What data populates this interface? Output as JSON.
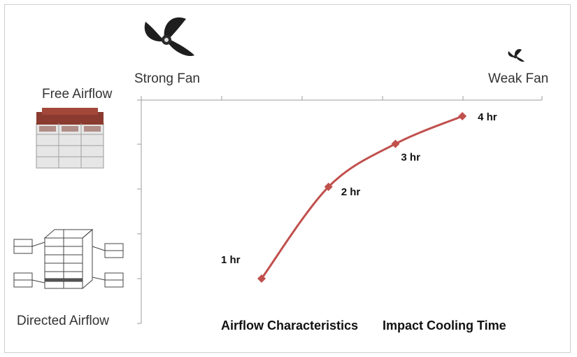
{
  "fans": {
    "strong_label": "Strong Fan",
    "weak_label": "Weak Fan"
  },
  "y_labels": {
    "top": "Free Airflow",
    "bottom": "Directed Airflow"
  },
  "captions": {
    "left": "Airflow Characteristics",
    "right": "Impact Cooling Time"
  },
  "chart_data": {
    "type": "line",
    "x": [
      1,
      2,
      3,
      4
    ],
    "y": [
      1,
      2,
      3,
      4
    ],
    "point_labels": [
      "1 hr",
      "2 hr",
      "3 hr",
      "4 hr"
    ],
    "line_color": "#c0504d",
    "marker": "diamond",
    "xlabel": "",
    "ylabel": "",
    "title": "",
    "grid": false
  }
}
